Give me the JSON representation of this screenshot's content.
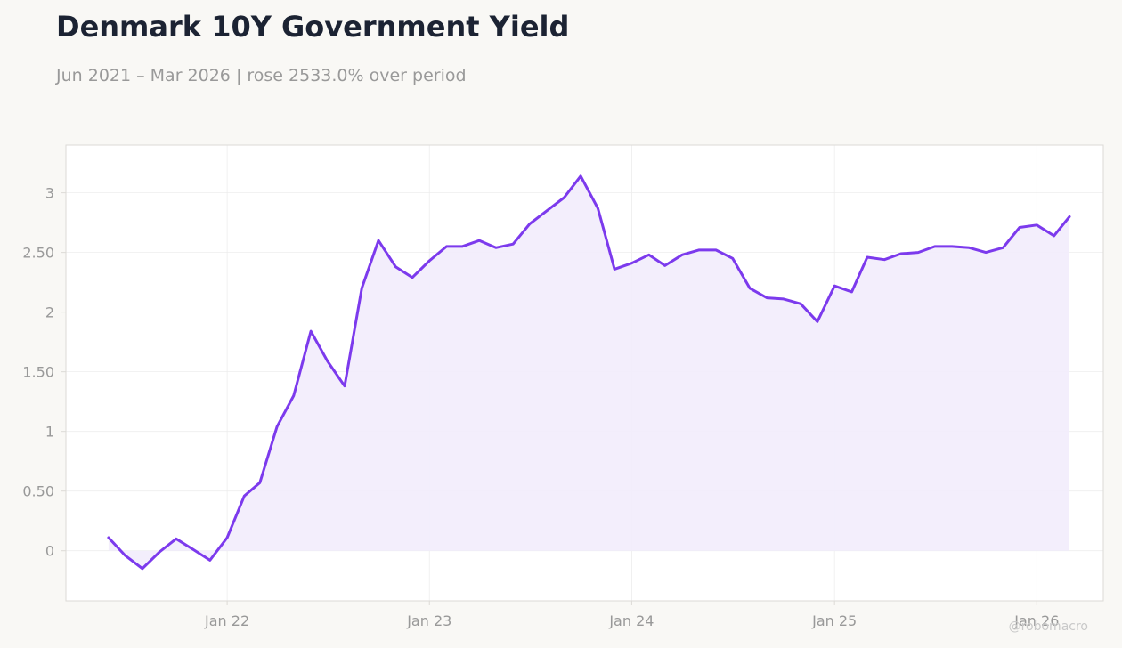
{
  "title": "Denmark 10Y Government Yield",
  "subtitle": "Jun 2021 – Mar 2026 | rose 2533.0% over period",
  "watermark": "@robomacro",
  "colors": {
    "line": "#7c3aed",
    "fill": "#f2ecfc",
    "grid": "#ededed",
    "axis_text": "#999999",
    "frame": "#dcdad6",
    "title": "#1c2333",
    "background": "#f9f8f5",
    "plot_background": "#ffffff"
  },
  "chart_data": {
    "type": "area",
    "title": "Denmark 10Y Government Yield",
    "xlabel": "",
    "ylabel": "",
    "x_ticks": [
      "2022-01",
      "2023-01",
      "2024-01",
      "2025-01",
      "2026-01"
    ],
    "x_tick_labels": [
      "Jan 22",
      "Jan 23",
      "Jan 24",
      "Jan 25",
      "Jan 26"
    ],
    "y_ticks": [
      0,
      0.5,
      1,
      1.5,
      2,
      2.5,
      3
    ],
    "y_tick_labels": [
      "0",
      "0.50",
      "1",
      "1.50",
      "2",
      "2.50",
      "3"
    ],
    "xlim": [
      "2021-03-16",
      "2026-05-01"
    ],
    "ylim": [
      -0.42,
      3.4
    ],
    "grid": true,
    "legend": "none",
    "series": [
      {
        "x": [
          "2021-06",
          "2021-07",
          "2021-08",
          "2021-09",
          "2021-10",
          "2021-11",
          "2021-12",
          "2022-01",
          "2022-02",
          "2022-03",
          "2022-04",
          "2022-05",
          "2022-06",
          "2022-07",
          "2022-08",
          "2022-09",
          "2022-10",
          "2022-11",
          "2022-12",
          "2023-01",
          "2023-02",
          "2023-03",
          "2023-04",
          "2023-05",
          "2023-06",
          "2023-07",
          "2023-08",
          "2023-09",
          "2023-10",
          "2023-11",
          "2023-12",
          "2024-01",
          "2024-02",
          "2024-03",
          "2024-04",
          "2024-05",
          "2024-06",
          "2024-07",
          "2024-08",
          "2024-09",
          "2024-10",
          "2024-11",
          "2024-12",
          "2025-01",
          "2025-02",
          "2025-03",
          "2025-04",
          "2025-05",
          "2025-06",
          "2025-07",
          "2025-08",
          "2025-09",
          "2025-10",
          "2025-11",
          "2025-12",
          "2026-01",
          "2026-02",
          "2026-03"
        ],
        "values": [
          0.11,
          -0.04,
          -0.15,
          -0.01,
          0.1,
          0.01,
          -0.08,
          0.11,
          0.46,
          0.57,
          1.04,
          1.3,
          1.84,
          1.59,
          1.38,
          2.2,
          2.6,
          2.38,
          2.29,
          2.43,
          2.55,
          2.55,
          2.6,
          2.54,
          2.57,
          2.74,
          2.85,
          2.96,
          3.14,
          2.87,
          2.36,
          2.41,
          2.48,
          2.39,
          2.48,
          2.52,
          2.52,
          2.45,
          2.2,
          2.12,
          2.11,
          2.07,
          1.92,
          2.22,
          2.17,
          2.46,
          2.44,
          2.49,
          2.5,
          2.55,
          2.55,
          2.54,
          2.5,
          2.54,
          2.71,
          2.73,
          2.64,
          2.8
        ]
      }
    ]
  }
}
